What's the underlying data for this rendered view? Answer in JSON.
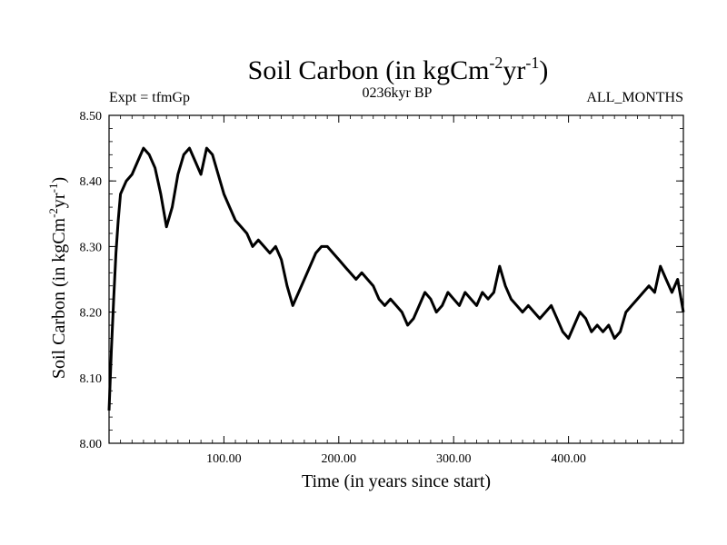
{
  "chart_data": {
    "type": "line",
    "title": {
      "main": "Soil Carbon (in kgCm",
      "sup1": "-2",
      "mid": "yr",
      "sup2": "-1",
      "end": ")"
    },
    "subtitle_left": "Expt = tfmGp",
    "subtitle_center": "0236kyr BP",
    "subtitle_right": "ALL_MONTHS",
    "xlabel": "Time (in years since start)",
    "ylabel": {
      "main": "Soil Carbon (in kgCm",
      "sup1": "-2",
      "mid": "yr",
      "sup2": "-1",
      "end": ")"
    },
    "xlim": [
      0,
      500
    ],
    "ylim": [
      8.0,
      8.5
    ],
    "x_ticks": [
      100,
      200,
      300,
      400
    ],
    "x_tick_labels": [
      "100.00",
      "200.00",
      "300.00",
      "400.00"
    ],
    "y_ticks": [
      8.0,
      8.1,
      8.2,
      8.3,
      8.4,
      8.5
    ],
    "y_tick_labels": [
      "8.00",
      "8.10",
      "8.20",
      "8.30",
      "8.40",
      "8.50"
    ],
    "grid": false,
    "line_color": "#000000",
    "series": [
      {
        "x": [
          0,
          2,
          4,
          6,
          8,
          10,
          15,
          20,
          25,
          30,
          35,
          40,
          45,
          50,
          55,
          60,
          65,
          70,
          75,
          80,
          85,
          90,
          95,
          100,
          105,
          110,
          115,
          120,
          125,
          130,
          135,
          140,
          145,
          150,
          155,
          160,
          165,
          170,
          175,
          180,
          185,
          190,
          195,
          200,
          205,
          210,
          215,
          220,
          225,
          230,
          235,
          240,
          245,
          250,
          255,
          260,
          265,
          270,
          275,
          280,
          285,
          290,
          295,
          300,
          305,
          310,
          315,
          320,
          325,
          330,
          335,
          340,
          345,
          350,
          355,
          360,
          365,
          370,
          375,
          380,
          385,
          390,
          395,
          400,
          405,
          410,
          415,
          420,
          425,
          430,
          435,
          440,
          445,
          450,
          455,
          460,
          465,
          470,
          475,
          480,
          485,
          490,
          495,
          500
        ],
        "y": [
          8.05,
          8.14,
          8.22,
          8.29,
          8.34,
          8.38,
          8.4,
          8.41,
          8.43,
          8.45,
          8.44,
          8.42,
          8.38,
          8.33,
          8.36,
          8.41,
          8.44,
          8.45,
          8.43,
          8.41,
          8.45,
          8.44,
          8.41,
          8.38,
          8.36,
          8.34,
          8.33,
          8.32,
          8.3,
          8.31,
          8.3,
          8.29,
          8.3,
          8.28,
          8.24,
          8.21,
          8.23,
          8.25,
          8.27,
          8.29,
          8.3,
          8.3,
          8.29,
          8.28,
          8.27,
          8.26,
          8.25,
          8.26,
          8.25,
          8.24,
          8.22,
          8.21,
          8.22,
          8.21,
          8.2,
          8.18,
          8.19,
          8.21,
          8.23,
          8.22,
          8.2,
          8.21,
          8.23,
          8.22,
          8.21,
          8.23,
          8.22,
          8.21,
          8.23,
          8.22,
          8.23,
          8.27,
          8.24,
          8.22,
          8.21,
          8.2,
          8.21,
          8.2,
          8.19,
          8.2,
          8.21,
          8.19,
          8.17,
          8.16,
          8.18,
          8.2,
          8.19,
          8.17,
          8.18,
          8.17,
          8.18,
          8.16,
          8.17,
          8.2,
          8.21,
          8.22,
          8.23,
          8.24,
          8.23,
          8.27,
          8.25,
          8.23,
          8.25,
          8.2
        ]
      }
    ]
  }
}
